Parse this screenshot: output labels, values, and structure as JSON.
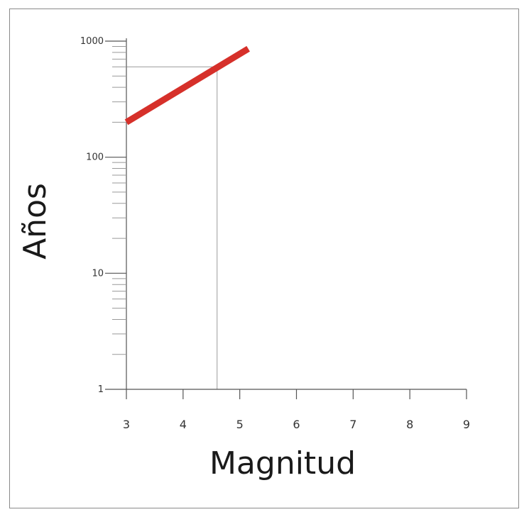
{
  "chart_data": {
    "type": "line",
    "title": "",
    "xlabel": "Magnitud",
    "ylabel": "Años",
    "x_scale": "linear",
    "y_scale": "log",
    "xlim": [
      3,
      9
    ],
    "ylim": [
      1,
      1000
    ],
    "x_ticks": [
      "3",
      "4",
      "5",
      "6",
      "7",
      "8",
      "9"
    ],
    "y_ticks": [
      {
        "value": 1,
        "label": "1"
      },
      {
        "value": 10,
        "label": "10"
      },
      {
        "value": 100,
        "label": "100"
      },
      {
        "value": 1000,
        "label": "1000"
      }
    ],
    "grid": false,
    "legend": "none",
    "series": [
      {
        "color": "#d6302a",
        "points": [
          {
            "x": 3.0,
            "y": 200
          },
          {
            "x": 5.15,
            "y": 860
          }
        ]
      }
    ],
    "reference_point": {
      "x": 4.6,
      "y": 600,
      "color": "#9a9a9a"
    },
    "colors": {
      "axis": "#555555",
      "frame": "#8a8a8a"
    }
  }
}
